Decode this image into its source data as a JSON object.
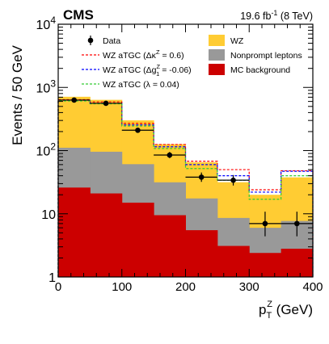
{
  "chart_data": {
    "type": "stacked-histogram",
    "experiment_label": "CMS",
    "lumi": {
      "value": "19.6 fb",
      "exponent": "-1",
      "energy": " (8 TeV)"
    },
    "xlabel": {
      "main": "p",
      "sub": "T",
      "sup": "Z",
      "unit": " (GeV)"
    },
    "ylabel": "Events /  50 GeV",
    "xlim": [
      0,
      400
    ],
    "ylim": [
      1,
      10000
    ],
    "yscale": "log",
    "x_ticks": [
      "0",
      "100",
      "200",
      "300",
      "400"
    ],
    "y_ticks": [
      {
        "base": "1",
        "exp": "",
        "value": 1
      },
      {
        "base": "10",
        "exp": "",
        "value": 10
      },
      {
        "base": "10",
        "exp": "2",
        "value": 100
      },
      {
        "base": "10",
        "exp": "3",
        "value": 1000
      },
      {
        "base": "10",
        "exp": "4",
        "value": 10000
      }
    ],
    "bin_edges": [
      0,
      50,
      100,
      150,
      200,
      250,
      300,
      350,
      400
    ],
    "stack": [
      {
        "name": "MC background",
        "color": "#cc0000",
        "values": [
          26,
          21,
          15,
          9.5,
          5.5,
          3.1,
          2.4,
          2.8
        ]
      },
      {
        "name": "Nonprompt leptons",
        "color": "#999999",
        "values": [
          85,
          75,
          46,
          22,
          12,
          5.5,
          3.6,
          4.9
        ]
      },
      {
        "name": "WZ",
        "color": "#ffcc33",
        "values": [
          600,
          540,
          240,
          95,
          48,
          23,
          14,
          30
        ]
      }
    ],
    "atgc_curves": [
      {
        "prefix": "WZ aTGC (Δκ",
        "sup": "Z",
        "sub": "",
        "suffix": " = 0.6)",
        "color": "#ff0000",
        "values": [
          640,
          590,
          270,
          125,
          68,
          50,
          24,
          48
        ]
      },
      {
        "prefix": "WZ aTGC (Δg",
        "sup": "Z",
        "sub": "1",
        "suffix": " = -0.06)",
        "color": "#0000ff",
        "values": [
          620,
          560,
          255,
          115,
          60,
          40,
          22,
          47
        ]
      },
      {
        "prefix": "WZ aTGC (λ = 0.04)",
        "sup": "",
        "sub": "",
        "suffix": "",
        "color": "#33cc33",
        "values": [
          610,
          550,
          245,
          108,
          52,
          34,
          17,
          40
        ]
      }
    ],
    "data_points": {
      "name": "Data",
      "x": [
        25,
        75,
        125,
        175,
        225,
        275,
        325,
        375
      ],
      "y": [
        630,
        560,
        210,
        85,
        38,
        34,
        7,
        7
      ],
      "y_err_low": [
        25,
        24,
        14,
        9,
        6,
        6,
        2.6,
        2.6
      ],
      "y_err_high": [
        25,
        24,
        15,
        10,
        7,
        7,
        3.8,
        3.8
      ]
    },
    "legend": {
      "placement": "top",
      "left_entries": [
        "Data",
        "atgc0",
        "atgc1",
        "atgc2"
      ],
      "right_entries": [
        "WZ",
        "Nonprompt leptons",
        "MC background"
      ]
    }
  }
}
